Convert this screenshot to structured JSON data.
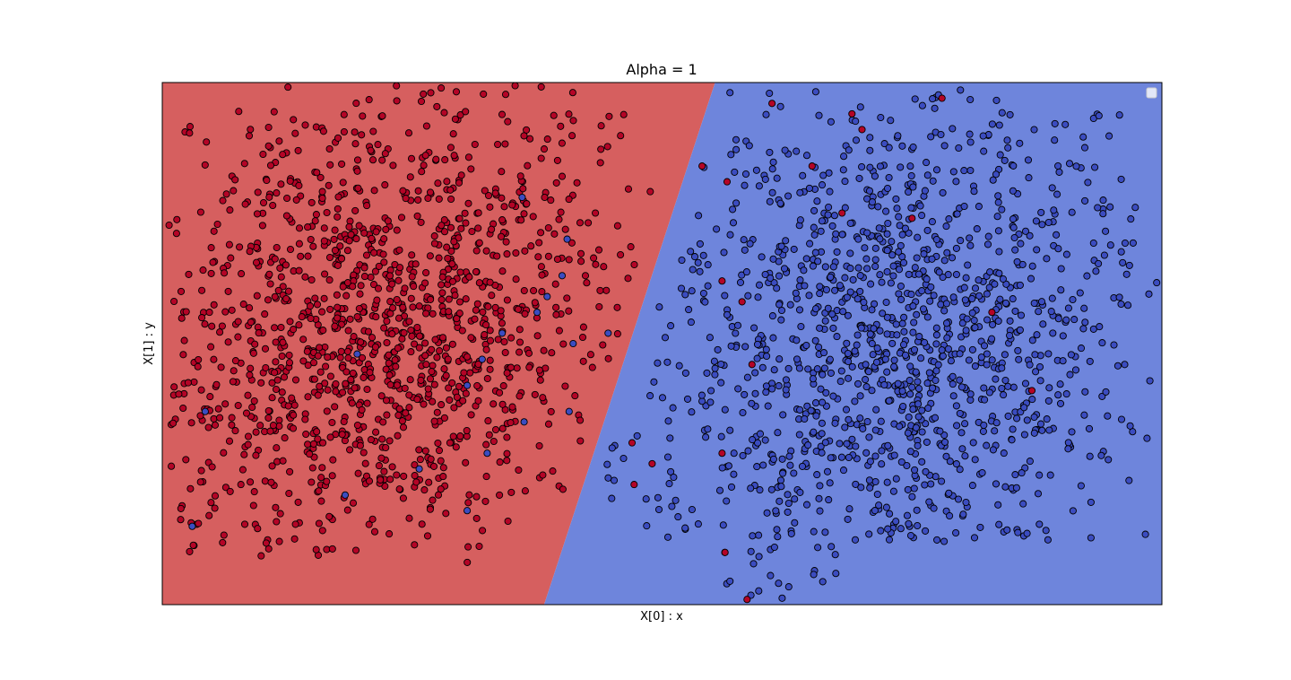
{
  "chart_data": {
    "type": "scatter",
    "title": "Alpha = 1",
    "xlabel": "X[0] : x",
    "ylabel": "X[1] : y",
    "xlim": [
      0,
      1
    ],
    "ylim": [
      0,
      1
    ],
    "xticks": [],
    "yticks": [],
    "grid": false,
    "legend": {
      "placement": "top-right",
      "entries": []
    },
    "decision_boundary": {
      "type": "linear",
      "points": [
        [
          0.553,
          1.0
        ],
        [
          0.382,
          0.0
        ]
      ],
      "regions": [
        {
          "side": "left",
          "label_class": 0,
          "color": "#d65f5f"
        },
        {
          "side": "right",
          "label_class": 1,
          "color": "#6e85dc"
        }
      ]
    },
    "classes": [
      {
        "id": 0,
        "color": "#b40426"
      },
      {
        "id": 1,
        "color": "#3b4cc0"
      }
    ],
    "clusters": [
      {
        "class": 0,
        "count": 1300,
        "x_range": [
          0.005,
          0.5
        ],
        "y_range": [
          0.08,
          0.995
        ],
        "shape": "left-of-boundary"
      },
      {
        "class": 1,
        "count": 1300,
        "x_range": [
          0.44,
          0.995
        ],
        "y_range": [
          0.01,
          0.995
        ],
        "shape": "right-of-boundary"
      }
    ],
    "misclassified": [
      {
        "class": 1,
        "points": [
          [
            0.305,
            0.42
          ],
          [
            0.325,
            0.29
          ],
          [
            0.305,
            0.18
          ],
          [
            0.405,
            0.7
          ],
          [
            0.385,
            0.59
          ],
          [
            0.45,
            0.3
          ],
          [
            0.043,
            0.37
          ],
          [
            0.03,
            0.15
          ],
          [
            0.183,
            0.21
          ],
          [
            0.257,
            0.26
          ],
          [
            0.34,
            0.52
          ],
          [
            0.32,
            0.47
          ],
          [
            0.411,
            0.5
          ],
          [
            0.446,
            0.52
          ],
          [
            0.407,
            0.37
          ],
          [
            0.362,
            0.35
          ],
          [
            0.195,
            0.48
          ],
          [
            0.36,
            0.78
          ],
          [
            0.4,
            0.63
          ],
          [
            0.375,
            0.56
          ]
        ]
      },
      {
        "class": 0,
        "points": [
          [
            0.58,
            0.58
          ],
          [
            0.56,
            0.62
          ],
          [
            0.565,
            0.81
          ],
          [
            0.65,
            0.84
          ],
          [
            0.69,
            0.94
          ],
          [
            0.56,
            0.29
          ],
          [
            0.47,
            0.31
          ],
          [
            0.49,
            0.27
          ],
          [
            0.472,
            0.23
          ],
          [
            0.59,
            0.46
          ],
          [
            0.83,
            0.56
          ],
          [
            0.87,
            0.41
          ],
          [
            0.68,
            0.75
          ],
          [
            0.75,
            0.74
          ],
          [
            0.563,
            0.1
          ],
          [
            0.585,
            0.01
          ],
          [
            0.78,
            0.97
          ],
          [
            0.61,
            0.96
          ],
          [
            0.7,
            0.91
          ],
          [
            0.54,
            0.84
          ]
        ]
      }
    ]
  }
}
